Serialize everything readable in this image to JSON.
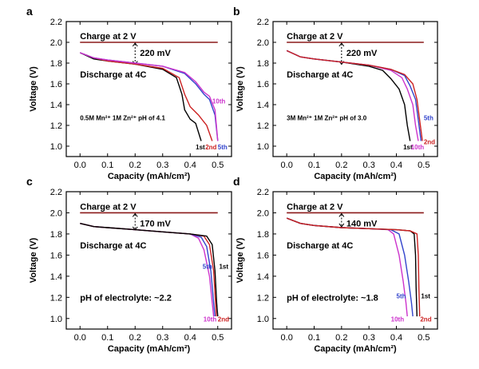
{
  "figure": {
    "xlabel": "Capacity (mAh/cm²)",
    "ylabel": "Voltage (V)"
  },
  "chart_data": [
    {
      "panel": "a",
      "type": "line",
      "xlim": [
        -0.05,
        0.55
      ],
      "ylim": [
        0.9,
        2.2
      ],
      "xticks": [
        0.0,
        0.1,
        0.2,
        0.3,
        0.4,
        0.5
      ],
      "yticks": [
        1.0,
        1.2,
        1.4,
        1.6,
        1.8,
        2.0,
        2.2
      ],
      "xlabel": "Capacity (mAh/cm²)",
      "ylabel": "Voltage (V)",
      "charge_text": "Charge at 2 V",
      "discharge_text": "Discharge at 4C",
      "gap_text": "220 mV",
      "note_text": "0.5M Mn²⁺ 1M Zn²⁺  pH of 4.1",
      "charge_line": {
        "x": [
          0.0,
          0.5
        ],
        "y": 2.0
      },
      "gap_marker": {
        "x": 0.2,
        "y1": 2.0,
        "y2": 1.78
      },
      "series": [
        {
          "name": "1st",
          "color": "#000000",
          "points": [
            [
              0,
              1.9
            ],
            [
              0.05,
              1.84
            ],
            [
              0.1,
              1.82
            ],
            [
              0.2,
              1.79
            ],
            [
              0.3,
              1.74
            ],
            [
              0.35,
              1.66
            ],
            [
              0.37,
              1.5
            ],
            [
              0.38,
              1.35
            ],
            [
              0.4,
              1.26
            ],
            [
              0.42,
              1.22
            ],
            [
              0.44,
              1.05
            ]
          ]
        },
        {
          "name": "2nd",
          "color": "#cc2222",
          "points": [
            [
              0,
              1.9
            ],
            [
              0.05,
              1.85
            ],
            [
              0.1,
              1.82
            ],
            [
              0.2,
              1.79
            ],
            [
              0.3,
              1.75
            ],
            [
              0.36,
              1.66
            ],
            [
              0.38,
              1.5
            ],
            [
              0.4,
              1.38
            ],
            [
              0.43,
              1.3
            ],
            [
              0.46,
              1.2
            ],
            [
              0.48,
              1.05
            ]
          ]
        },
        {
          "name": "5th",
          "color": "#3344cc",
          "points": [
            [
              0,
              1.9
            ],
            [
              0.05,
              1.85
            ],
            [
              0.1,
              1.83
            ],
            [
              0.2,
              1.8
            ],
            [
              0.3,
              1.77
            ],
            [
              0.38,
              1.7
            ],
            [
              0.42,
              1.6
            ],
            [
              0.45,
              1.5
            ],
            [
              0.47,
              1.45
            ],
            [
              0.49,
              1.3
            ],
            [
              0.5,
              1.05
            ]
          ]
        },
        {
          "name": "10th",
          "color": "#cc33cc",
          "points": [
            [
              0,
              1.9
            ],
            [
              0.05,
              1.85
            ],
            [
              0.1,
              1.83
            ],
            [
              0.2,
              1.8
            ],
            [
              0.3,
              1.77
            ],
            [
              0.38,
              1.71
            ],
            [
              0.42,
              1.62
            ],
            [
              0.45,
              1.52
            ],
            [
              0.47,
              1.48
            ],
            [
              0.49,
              1.35
            ],
            [
              0.5,
              1.05
            ]
          ]
        }
      ],
      "curve_labels": [
        {
          "text": "1st",
          "x": 0.42,
          "y": 0.97,
          "color": "#000000"
        },
        {
          "text": "2nd",
          "x": 0.455,
          "y": 0.97,
          "color": "#cc2222"
        },
        {
          "text": "5th",
          "x": 0.5,
          "y": 0.97,
          "color": "#3344cc"
        },
        {
          "text": "10th",
          "x": 0.48,
          "y": 1.41,
          "color": "#cc33cc"
        }
      ]
    },
    {
      "panel": "b",
      "type": "line",
      "xlim": [
        -0.05,
        0.55
      ],
      "ylim": [
        0.9,
        2.2
      ],
      "xticks": [
        0.0,
        0.1,
        0.2,
        0.3,
        0.4,
        0.5
      ],
      "yticks": [
        1.0,
        1.2,
        1.4,
        1.6,
        1.8,
        2.0,
        2.2
      ],
      "xlabel": "Capacity (mAh/cm²)",
      "ylabel": "Voltage (V)",
      "charge_text": "Charge at 2 V",
      "discharge_text": "Discharge at 4C",
      "gap_text": "220 mV",
      "note_text": "3M Mn²⁺ 1M Zn²⁺  pH of 3.0",
      "charge_line": {
        "x": [
          0.0,
          0.5
        ],
        "y": 2.0
      },
      "gap_marker": {
        "x": 0.2,
        "y1": 2.0,
        "y2": 1.78
      },
      "series": [
        {
          "name": "1st",
          "color": "#000000",
          "points": [
            [
              0,
              1.92
            ],
            [
              0.05,
              1.86
            ],
            [
              0.1,
              1.84
            ],
            [
              0.2,
              1.81
            ],
            [
              0.3,
              1.77
            ],
            [
              0.35,
              1.73
            ],
            [
              0.38,
              1.65
            ],
            [
              0.41,
              1.55
            ],
            [
              0.43,
              1.4
            ],
            [
              0.44,
              1.2
            ],
            [
              0.45,
              1.05
            ]
          ]
        },
        {
          "name": "10th",
          "color": "#cc33cc",
          "points": [
            [
              0,
              1.92
            ],
            [
              0.05,
              1.86
            ],
            [
              0.1,
              1.84
            ],
            [
              0.2,
              1.81
            ],
            [
              0.3,
              1.78
            ],
            [
              0.38,
              1.73
            ],
            [
              0.42,
              1.66
            ],
            [
              0.44,
              1.55
            ],
            [
              0.46,
              1.4
            ],
            [
              0.47,
              1.2
            ],
            [
              0.48,
              1.05
            ]
          ]
        },
        {
          "name": "5th",
          "color": "#3344cc",
          "points": [
            [
              0,
              1.92
            ],
            [
              0.05,
              1.86
            ],
            [
              0.1,
              1.84
            ],
            [
              0.2,
              1.81
            ],
            [
              0.3,
              1.78
            ],
            [
              0.38,
              1.74
            ],
            [
              0.43,
              1.68
            ],
            [
              0.45,
              1.58
            ],
            [
              0.47,
              1.45
            ],
            [
              0.48,
              1.25
            ],
            [
              0.49,
              1.05
            ]
          ]
        },
        {
          "name": "2nd",
          "color": "#cc2222",
          "points": [
            [
              0,
              1.92
            ],
            [
              0.05,
              1.86
            ],
            [
              0.1,
              1.84
            ],
            [
              0.2,
              1.81
            ],
            [
              0.3,
              1.78
            ],
            [
              0.38,
              1.74
            ],
            [
              0.43,
              1.69
            ],
            [
              0.46,
              1.6
            ],
            [
              0.475,
              1.45
            ],
            [
              0.485,
              1.25
            ],
            [
              0.495,
              1.05
            ]
          ]
        }
      ],
      "curve_labels": [
        {
          "text": "1st",
          "x": 0.425,
          "y": 0.97,
          "color": "#000000"
        },
        {
          "text": "10th",
          "x": 0.453,
          "y": 0.97,
          "color": "#cc33cc"
        },
        {
          "text": "2nd",
          "x": 0.5,
          "y": 1.02,
          "color": "#cc2222"
        },
        {
          "text": "5th",
          "x": 0.5,
          "y": 1.25,
          "color": "#3344cc"
        }
      ]
    },
    {
      "panel": "c",
      "type": "line",
      "xlim": [
        -0.05,
        0.55
      ],
      "ylim": [
        0.9,
        2.2
      ],
      "xticks": [
        0.0,
        0.1,
        0.2,
        0.3,
        0.4,
        0.5
      ],
      "yticks": [
        1.0,
        1.2,
        1.4,
        1.6,
        1.8,
        2.0,
        2.2
      ],
      "xlabel": "Capacity (mAh/cm²)",
      "ylabel": "Voltage (V)",
      "charge_text": "Charge at 2 V",
      "discharge_text": "Discharge at 4C",
      "gap_text": "170 mV",
      "note_text": "pH of electrolyte: ~2.2",
      "charge_line": {
        "x": [
          0.0,
          0.5
        ],
        "y": 2.0
      },
      "gap_marker": {
        "x": 0.2,
        "y1": 2.0,
        "y2": 1.83
      },
      "series": [
        {
          "name": "10th",
          "color": "#cc33cc",
          "points": [
            [
              0,
              1.9
            ],
            [
              0.05,
              1.87
            ],
            [
              0.1,
              1.86
            ],
            [
              0.2,
              1.84
            ],
            [
              0.3,
              1.82
            ],
            [
              0.4,
              1.8
            ],
            [
              0.43,
              1.76
            ],
            [
              0.45,
              1.65
            ],
            [
              0.47,
              1.4
            ],
            [
              0.48,
              1.15
            ],
            [
              0.485,
              1.02
            ]
          ]
        },
        {
          "name": "5th",
          "color": "#3344cc",
          "points": [
            [
              0,
              1.9
            ],
            [
              0.05,
              1.87
            ],
            [
              0.1,
              1.86
            ],
            [
              0.2,
              1.84
            ],
            [
              0.3,
              1.82
            ],
            [
              0.4,
              1.8
            ],
            [
              0.44,
              1.77
            ],
            [
              0.46,
              1.68
            ],
            [
              0.475,
              1.45
            ],
            [
              0.485,
              1.15
            ],
            [
              0.49,
              1.02
            ]
          ]
        },
        {
          "name": "2nd",
          "color": "#cc2222",
          "points": [
            [
              0,
              1.9
            ],
            [
              0.05,
              1.87
            ],
            [
              0.1,
              1.86
            ],
            [
              0.2,
              1.84
            ],
            [
              0.3,
              1.82
            ],
            [
              0.4,
              1.8
            ],
            [
              0.45,
              1.78
            ],
            [
              0.47,
              1.7
            ],
            [
              0.485,
              1.45
            ],
            [
              0.492,
              1.15
            ],
            [
              0.495,
              1.02
            ]
          ]
        },
        {
          "name": "1st",
          "color": "#000000",
          "points": [
            [
              0,
              1.9
            ],
            [
              0.05,
              1.87
            ],
            [
              0.1,
              1.86
            ],
            [
              0.2,
              1.84
            ],
            [
              0.3,
              1.82
            ],
            [
              0.4,
              1.8
            ],
            [
              0.46,
              1.78
            ],
            [
              0.48,
              1.7
            ],
            [
              0.49,
              1.45
            ],
            [
              0.496,
              1.15
            ],
            [
              0.5,
              1.02
            ]
          ]
        }
      ],
      "curve_labels": [
        {
          "text": "5th",
          "x": 0.445,
          "y": 1.47,
          "color": "#3344cc"
        },
        {
          "text": "1st",
          "x": 0.505,
          "y": 1.47,
          "color": "#000000"
        },
        {
          "text": "10th",
          "x": 0.448,
          "y": 0.97,
          "color": "#cc33cc"
        },
        {
          "text": "2nd",
          "x": 0.5,
          "y": 0.97,
          "color": "#cc2222"
        }
      ]
    },
    {
      "panel": "d",
      "type": "line",
      "xlim": [
        -0.05,
        0.55
      ],
      "ylim": [
        0.9,
        2.2
      ],
      "xticks": [
        0.0,
        0.1,
        0.2,
        0.3,
        0.4,
        0.5
      ],
      "yticks": [
        1.0,
        1.2,
        1.4,
        1.6,
        1.8,
        2.0,
        2.2
      ],
      "xlabel": "Capacity (mAh/cm²)",
      "ylabel": "Voltage (V)",
      "charge_text": "Charge at 2 V",
      "discharge_text": "Discharge at 4C",
      "gap_text": "140 mV",
      "note_text": "pH of electrolyte: ~1.8",
      "charge_line": {
        "x": [
          0.0,
          0.5
        ],
        "y": 2.0
      },
      "gap_marker": {
        "x": 0.2,
        "y1": 2.0,
        "y2": 1.86
      },
      "series": [
        {
          "name": "10th",
          "color": "#cc33cc",
          "points": [
            [
              0,
              1.95
            ],
            [
              0.05,
              1.9
            ],
            [
              0.1,
              1.88
            ],
            [
              0.2,
              1.86
            ],
            [
              0.3,
              1.85
            ],
            [
              0.37,
              1.84
            ],
            [
              0.39,
              1.8
            ],
            [
              0.41,
              1.6
            ],
            [
              0.425,
              1.35
            ],
            [
              0.435,
              1.15
            ],
            [
              0.44,
              1.02
            ]
          ]
        },
        {
          "name": "5th",
          "color": "#3344cc",
          "points": [
            [
              0,
              1.95
            ],
            [
              0.05,
              1.9
            ],
            [
              0.1,
              1.88
            ],
            [
              0.2,
              1.86
            ],
            [
              0.3,
              1.85
            ],
            [
              0.38,
              1.84
            ],
            [
              0.41,
              1.8
            ],
            [
              0.43,
              1.6
            ],
            [
              0.445,
              1.35
            ],
            [
              0.455,
              1.15
            ],
            [
              0.46,
              1.02
            ]
          ]
        },
        {
          "name": "1st",
          "color": "#000000",
          "points": [
            [
              0,
              1.95
            ],
            [
              0.05,
              1.9
            ],
            [
              0.1,
              1.88
            ],
            [
              0.2,
              1.86
            ],
            [
              0.3,
              1.85
            ],
            [
              0.4,
              1.84
            ],
            [
              0.45,
              1.83
            ],
            [
              0.465,
              1.8
            ],
            [
              0.47,
              1.6
            ],
            [
              0.472,
              1.3
            ],
            [
              0.475,
              1.02
            ]
          ]
        },
        {
          "name": "2nd",
          "color": "#cc2222",
          "points": [
            [
              0,
              1.95
            ],
            [
              0.05,
              1.9
            ],
            [
              0.1,
              1.88
            ],
            [
              0.2,
              1.86
            ],
            [
              0.3,
              1.85
            ],
            [
              0.4,
              1.84
            ],
            [
              0.45,
              1.83
            ],
            [
              0.475,
              1.8
            ],
            [
              0.48,
              1.6
            ],
            [
              0.482,
              1.3
            ],
            [
              0.485,
              1.02
            ]
          ]
        }
      ],
      "curve_labels": [
        {
          "text": "5th",
          "x": 0.4,
          "y": 1.19,
          "color": "#3344cc"
        },
        {
          "text": "1st",
          "x": 0.49,
          "y": 1.19,
          "color": "#000000"
        },
        {
          "text": "10th",
          "x": 0.38,
          "y": 0.97,
          "color": "#cc33cc"
        },
        {
          "text": "2nd",
          "x": 0.487,
          "y": 0.97,
          "color": "#cc2222"
        }
      ]
    }
  ]
}
